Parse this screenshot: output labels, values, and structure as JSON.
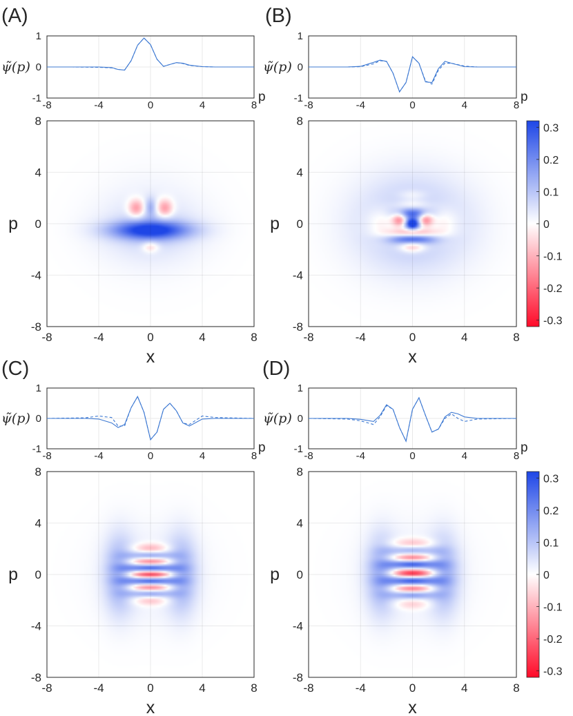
{
  "figure": {
    "colormap": {
      "negative": "#ff0a28",
      "zero": "#ffffff",
      "positive": "#1e46e6"
    },
    "line_color": "#3c78d2",
    "colorbar_ticks": [
      "0.3",
      "0.2",
      "0.1",
      "0",
      "-0.1",
      "-0.2",
      "-0.3"
    ]
  },
  "chart_data": [
    {
      "panel": "(A)",
      "type": "line+heatmap",
      "line": {
        "ylabel": "ψ̃(p)",
        "xlabel": "p",
        "xlim": [
          -8,
          8
        ],
        "ylim": [
          -1,
          1
        ],
        "xticks": [
          "-8",
          "-4",
          "0",
          "4",
          "8"
        ],
        "yticks": [
          "1",
          "0",
          "-1"
        ],
        "series": [
          {
            "name": "solid",
            "style": "solid",
            "x": [
              -8,
              -6,
              -4,
              -3,
              -2.5,
              -2,
              -1.5,
              -1,
              -0.5,
              0,
              0.5,
              1,
              1.5,
              2,
              2.5,
              3,
              4,
              5,
              6,
              8
            ],
            "y": [
              0,
              0,
              0,
              -0.02,
              -0.08,
              -0.1,
              0.2,
              0.7,
              0.93,
              0.72,
              0.25,
              0.02,
              0.08,
              0.14,
              0.12,
              0.06,
              0.01,
              0,
              0,
              0
            ]
          },
          {
            "name": "dashed",
            "style": "dashed",
            "x": [
              -8,
              -6,
              -4,
              -3,
              -2.5,
              -2,
              -1.5,
              -1,
              -0.5,
              0,
              0.5,
              1,
              1.5,
              2,
              2.5,
              3,
              4,
              5,
              6,
              8
            ],
            "y": [
              0,
              0,
              -0.01,
              -0.03,
              -0.08,
              -0.1,
              0.2,
              0.7,
              0.93,
              0.72,
              0.25,
              0.02,
              0.08,
              0.14,
              0.11,
              0.05,
              0.01,
              0,
              0,
              0
            ]
          }
        ]
      },
      "heatmap": {
        "xlabel": "x",
        "ylabel": "p",
        "xlim": [
          -8,
          8
        ],
        "ylim": [
          -8,
          8
        ],
        "xticks": [
          "-8",
          "-4",
          "0",
          "4",
          "8"
        ],
        "yticks": [
          "8",
          "4",
          "0",
          "-4",
          "-8"
        ],
        "features": [
          {
            "x": 0,
            "y": -0.5,
            "sx": 2.1,
            "sy": 0.5,
            "v": 0.3
          },
          {
            "x": 0,
            "y": -0.5,
            "sx": 2.6,
            "sy": 1.4,
            "v": 0.05
          },
          {
            "x": -1.1,
            "y": 1.2,
            "sx": 0.45,
            "sy": 0.5,
            "v": -0.17
          },
          {
            "x": 1.1,
            "y": 1.2,
            "sx": 0.45,
            "sy": 0.5,
            "v": -0.17
          },
          {
            "x": 0,
            "y": 1.3,
            "sx": 0.3,
            "sy": 0.5,
            "v": 0.1
          },
          {
            "x": 0,
            "y": -1.8,
            "sx": 0.45,
            "sy": 0.3,
            "v": -0.1
          },
          {
            "x": 0,
            "y": 0,
            "sx": 2.8,
            "sy": 2.6,
            "v": 0.03
          }
        ]
      }
    },
    {
      "panel": "(B)",
      "type": "line+heatmap",
      "line": {
        "ylabel": "ψ̃(p)",
        "xlabel": "p",
        "xlim": [
          -8,
          8
        ],
        "ylim": [
          -1,
          1
        ],
        "xticks": [
          "-8",
          "-4",
          "0",
          "4",
          "8"
        ],
        "yticks": [
          "1",
          "0",
          "-1"
        ],
        "series": [
          {
            "name": "solid",
            "style": "solid",
            "x": [
              -8,
              -5,
              -4,
              -3,
              -2.5,
              -2,
              -1.5,
              -1,
              -0.5,
              0,
              0.5,
              1,
              1.5,
              2,
              2.5,
              3,
              4,
              5,
              8
            ],
            "y": [
              0,
              0,
              0.02,
              0.15,
              0.22,
              0.18,
              -0.2,
              -0.8,
              -0.5,
              0.33,
              0.12,
              -0.48,
              -0.5,
              -0.05,
              0.18,
              0.12,
              0.01,
              0,
              0
            ]
          },
          {
            "name": "dashed",
            "style": "dashed",
            "x": [
              -8,
              -5,
              -4,
              -3,
              -2.5,
              -2,
              -1.5,
              -1,
              -0.5,
              0,
              0.5,
              1,
              1.5,
              2,
              2.5,
              3,
              4,
              5,
              8
            ],
            "y": [
              0,
              0,
              0.01,
              0.1,
              0.2,
              0.18,
              -0.2,
              -0.8,
              -0.5,
              0.33,
              0.12,
              -0.45,
              -0.55,
              -0.1,
              0.12,
              0.12,
              0.03,
              0,
              0
            ]
          }
        ]
      },
      "heatmap": {
        "xlabel": "x",
        "ylabel": "p",
        "xlim": [
          -8,
          8
        ],
        "ylim": [
          -8,
          8
        ],
        "xticks": [
          "-8",
          "-4",
          "0",
          "4",
          "8"
        ],
        "yticks": [
          "8",
          "4",
          "0",
          "-4",
          "-8"
        ],
        "features": [
          {
            "x": 0,
            "y": 0,
            "sx": 3.0,
            "sy": 2.5,
            "v": 0.12
          },
          {
            "x": -2.2,
            "y": 0,
            "sx": 0.9,
            "sy": 0.9,
            "v": -0.1
          },
          {
            "x": 2.2,
            "y": 0,
            "sx": 0.9,
            "sy": 0.9,
            "v": -0.1
          },
          {
            "x": 0,
            "y": 0,
            "sx": 0.35,
            "sy": 0.3,
            "v": 0.32
          },
          {
            "x": -1.0,
            "y": 0.3,
            "sx": 0.4,
            "sy": 0.4,
            "v": -0.22
          },
          {
            "x": 1.0,
            "y": 0.3,
            "sx": 0.4,
            "sy": 0.4,
            "v": -0.22
          },
          {
            "x": 0,
            "y": 0.8,
            "sx": 0.9,
            "sy": 0.25,
            "v": 0.15
          },
          {
            "x": 0,
            "y": -0.7,
            "sx": 1.2,
            "sy": 0.25,
            "v": -0.2
          },
          {
            "x": 0,
            "y": -1.2,
            "sx": 1.3,
            "sy": 0.25,
            "v": 0.18
          },
          {
            "x": 0,
            "y": 1.5,
            "sx": 0.9,
            "sy": 0.25,
            "v": -0.08
          },
          {
            "x": 0,
            "y": 2.2,
            "sx": 0.8,
            "sy": 0.3,
            "v": -0.06
          },
          {
            "x": 0,
            "y": -1.8,
            "sx": 0.7,
            "sy": 0.3,
            "v": -0.15
          }
        ]
      }
    },
    {
      "panel": "(C)",
      "type": "line+heatmap",
      "line": {
        "ylabel": "ψ̃(p)",
        "xlabel": "p",
        "xlim": [
          -8,
          8
        ],
        "ylim": [
          -1,
          1
        ],
        "xticks": [
          "-8",
          "-4",
          "0",
          "4",
          "8"
        ],
        "yticks": [
          "1",
          "0",
          "-1"
        ],
        "series": [
          {
            "name": "solid",
            "style": "solid",
            "x": [
              -8,
              -5,
              -4,
              -3,
              -2.5,
              -2,
              -1.5,
              -1,
              -0.5,
              0,
              0.5,
              1,
              1.5,
              2,
              2.5,
              3,
              4,
              5,
              8
            ],
            "y": [
              0,
              0,
              -0.02,
              -0.15,
              -0.3,
              -0.2,
              0.35,
              0.72,
              0.2,
              -0.7,
              -0.45,
              0.3,
              0.5,
              0.25,
              -0.15,
              -0.25,
              -0.02,
              0,
              0
            ]
          },
          {
            "name": "dashed",
            "style": "dashed",
            "x": [
              -8,
              -5,
              -4,
              -3,
              -2.5,
              -2,
              -1.5,
              -1,
              -0.5,
              0,
              0.5,
              1,
              1.5,
              2,
              2.5,
              3,
              4,
              5,
              8
            ],
            "y": [
              0,
              0.02,
              0.08,
              0.03,
              -0.25,
              -0.25,
              0.35,
              0.72,
              0.2,
              -0.7,
              -0.45,
              0.3,
              0.5,
              0.25,
              -0.15,
              -0.2,
              0.08,
              0.03,
              0
            ]
          }
        ]
      },
      "heatmap": {
        "xlabel": "x",
        "ylabel": "p",
        "xlim": [
          -8,
          8
        ],
        "ylim": [
          -8,
          8
        ],
        "xticks": [
          "-8",
          "-4",
          "0",
          "4",
          "8"
        ],
        "yticks": [
          "8",
          "4",
          "0",
          "-4",
          "-8"
        ],
        "features": [
          {
            "x": -2.4,
            "y": 0,
            "sx": 0.8,
            "sy": 2.0,
            "v": 0.15
          },
          {
            "x": 2.4,
            "y": 0,
            "sx": 0.8,
            "sy": 2.0,
            "v": 0.15
          },
          {
            "x": 0,
            "y": 0,
            "sx": 2.8,
            "sy": 2.6,
            "v": 0.03
          },
          {
            "x": 0,
            "y": 2.0,
            "sx": 1.0,
            "sy": 0.3,
            "v": -0.12
          },
          {
            "x": 0,
            "y": 1.5,
            "sx": 1.1,
            "sy": 0.22,
            "v": 0.15
          },
          {
            "x": 0,
            "y": 1.0,
            "sx": 1.2,
            "sy": 0.22,
            "v": -0.2
          },
          {
            "x": 0,
            "y": 0.5,
            "sx": 1.2,
            "sy": 0.22,
            "v": 0.25
          },
          {
            "x": 0,
            "y": 0.0,
            "sx": 1.2,
            "sy": 0.22,
            "v": -0.3
          },
          {
            "x": 0,
            "y": -0.5,
            "sx": 1.2,
            "sy": 0.22,
            "v": 0.25
          },
          {
            "x": 0,
            "y": -1.0,
            "sx": 1.2,
            "sy": 0.22,
            "v": -0.2
          },
          {
            "x": 0,
            "y": -1.5,
            "sx": 1.1,
            "sy": 0.22,
            "v": 0.15
          },
          {
            "x": 0,
            "y": -2.0,
            "sx": 1.0,
            "sy": 0.3,
            "v": -0.1
          }
        ]
      }
    },
    {
      "panel": "(D)",
      "type": "line+heatmap",
      "line": {
        "ylabel": "ψ̃(p)",
        "xlabel": "p",
        "xlim": [
          -8,
          8
        ],
        "ylim": [
          -1,
          1
        ],
        "xticks": [
          "-8",
          "-4",
          "0",
          "4",
          "8"
        ],
        "yticks": [
          "1",
          "0",
          "-1"
        ],
        "series": [
          {
            "name": "solid",
            "style": "solid",
            "x": [
              -8,
              -5,
              -4,
              -3,
              -2.5,
              -2,
              -1.5,
              -1,
              -0.5,
              0,
              0.5,
              1,
              1.5,
              2,
              2.5,
              3,
              3.5,
              4,
              5,
              8
            ],
            "y": [
              0,
              0,
              -0.03,
              -0.1,
              0.1,
              0.45,
              0.3,
              -0.3,
              -0.75,
              0.3,
              0.68,
              0.1,
              -0.45,
              -0.35,
              0.05,
              0.2,
              0.15,
              0.05,
              0,
              0
            ]
          },
          {
            "name": "dashed",
            "style": "dashed",
            "x": [
              -8,
              -5,
              -4,
              -3,
              -2.5,
              -2,
              -1.5,
              -1,
              -0.5,
              0,
              0.5,
              1,
              1.5,
              2,
              2.5,
              3,
              3.5,
              4,
              5,
              8
            ],
            "y": [
              0,
              -0.02,
              -0.08,
              -0.2,
              0.05,
              0.42,
              0.3,
              -0.3,
              -0.75,
              0.3,
              0.68,
              0.1,
              -0.45,
              -0.35,
              0.0,
              0.15,
              0.0,
              -0.1,
              -0.02,
              0
            ]
          }
        ]
      },
      "heatmap": {
        "xlabel": "x",
        "ylabel": "p",
        "xlim": [
          -8,
          8
        ],
        "ylim": [
          -8,
          8
        ],
        "xticks": [
          "-8",
          "-4",
          "0",
          "4",
          "8"
        ],
        "yticks": [
          "8",
          "4",
          "0",
          "-4",
          "-8"
        ],
        "features": [
          {
            "x": -2.4,
            "y": 0,
            "sx": 0.8,
            "sy": 2.0,
            "v": 0.15
          },
          {
            "x": 2.4,
            "y": 0,
            "sx": 0.8,
            "sy": 2.0,
            "v": 0.15
          },
          {
            "x": 0,
            "y": 0,
            "sx": 2.8,
            "sy": 2.7,
            "v": 0.03
          },
          {
            "x": 0,
            "y": 2.4,
            "sx": 1.3,
            "sy": 0.3,
            "v": -0.1
          },
          {
            "x": 0,
            "y": 1.9,
            "sx": 1.2,
            "sy": 0.25,
            "v": 0.12
          },
          {
            "x": 0,
            "y": 1.3,
            "sx": 1.2,
            "sy": 0.22,
            "v": -0.2
          },
          {
            "x": 0,
            "y": 0.8,
            "sx": 1.2,
            "sy": 0.22,
            "v": 0.25
          },
          {
            "x": 0,
            "y": 0.1,
            "sx": 1.2,
            "sy": 0.22,
            "v": -0.3
          },
          {
            "x": 0,
            "y": -0.5,
            "sx": 1.2,
            "sy": 0.22,
            "v": 0.25
          },
          {
            "x": 0,
            "y": -1.1,
            "sx": 1.2,
            "sy": 0.22,
            "v": -0.2
          },
          {
            "x": 0,
            "y": -1.6,
            "sx": 1.1,
            "sy": 0.22,
            "v": 0.15
          },
          {
            "x": 0,
            "y": -2.3,
            "sx": 1.0,
            "sy": 0.3,
            "v": -0.08
          }
        ]
      }
    }
  ]
}
